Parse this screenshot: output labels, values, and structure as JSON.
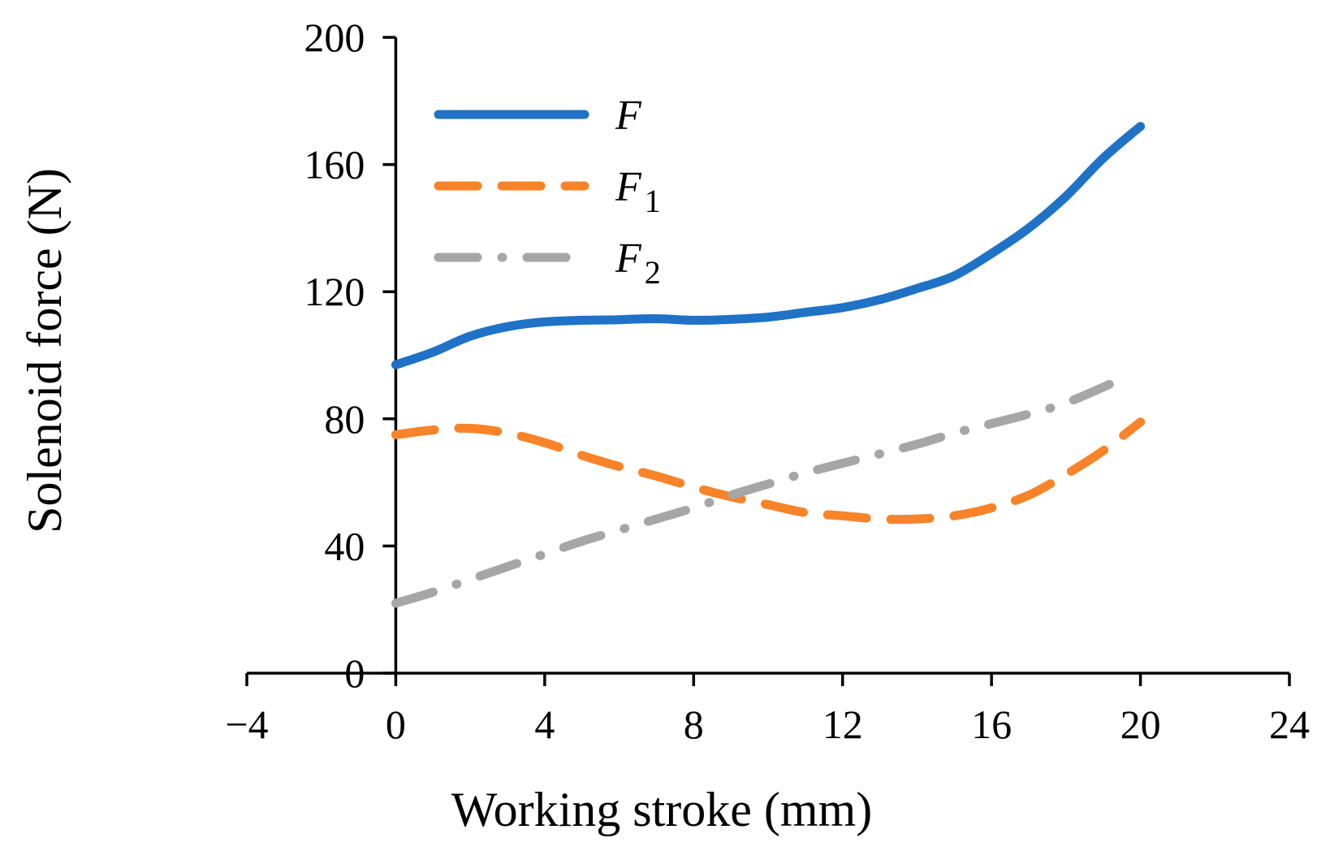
{
  "chart_data": {
    "type": "line",
    "title": "",
    "xlabel": "Working stroke (mm)",
    "ylabel": "Solenoid force (N)",
    "xlim": [
      -4,
      24
    ],
    "ylim": [
      0,
      200
    ],
    "xticks": [
      -4,
      0,
      4,
      8,
      12,
      16,
      20,
      24
    ],
    "xtick_labels": [
      "−4",
      "0",
      "4",
      "8",
      "12",
      "16",
      "20",
      "24"
    ],
    "yticks": [
      0,
      40,
      80,
      120,
      160,
      200
    ],
    "ytick_labels": [
      "0",
      "40",
      "80",
      "120",
      "160",
      "200"
    ],
    "grid": false,
    "legend_position": "top-left",
    "series": [
      {
        "name": "F",
        "name_base": "F",
        "name_sub": "",
        "color": "#1f72c6",
        "dash": "solid",
        "x": [
          0,
          1,
          2,
          3,
          4,
          5,
          6,
          7,
          8,
          9,
          10,
          11,
          12,
          13,
          14,
          15,
          16,
          17,
          18,
          19,
          20
        ],
        "y": [
          97,
          101,
          106,
          109,
          110.5,
          111,
          111.2,
          111.5,
          111,
          111.3,
          112,
          113.5,
          115,
          117.5,
          121,
          125,
          132,
          140,
          150,
          162,
          172
        ]
      },
      {
        "name": "F1",
        "name_base": "F",
        "name_sub": "1",
        "color": "#f98328",
        "dash": "dash",
        "x": [
          0,
          1,
          2,
          3,
          4,
          5,
          6,
          7,
          8,
          9,
          10,
          11,
          12,
          13,
          14,
          15,
          16,
          17,
          18,
          19,
          20
        ],
        "y": [
          75,
          76.5,
          77,
          75.5,
          72.5,
          68.5,
          65,
          62,
          58.5,
          55.5,
          53,
          50.5,
          49.5,
          48.5,
          48.5,
          49.5,
          52,
          56,
          62.5,
          70,
          79
        ]
      },
      {
        "name": "F2",
        "name_base": "F",
        "name_sub": "2",
        "color": "#a6a6a6",
        "dash": "dashdot",
        "x": [
          0,
          1,
          2,
          3,
          4,
          5,
          6,
          7,
          8,
          9,
          10,
          11,
          12,
          13,
          14,
          15,
          16,
          17,
          18,
          19.2
        ],
        "y": [
          22,
          25.5,
          29.5,
          33.5,
          37.5,
          41.5,
          45,
          48.5,
          52,
          56,
          59.5,
          63,
          66,
          69,
          72,
          75.5,
          78.5,
          81.5,
          85,
          91
        ]
      }
    ]
  }
}
